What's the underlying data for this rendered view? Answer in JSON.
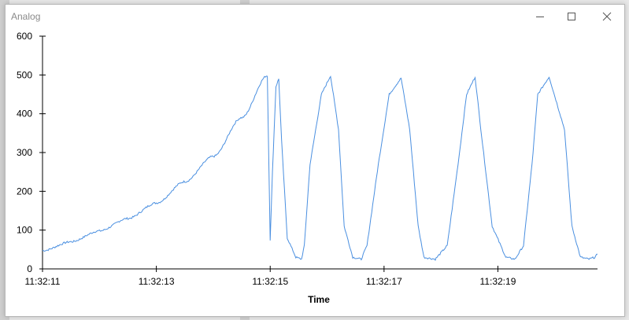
{
  "window": {
    "title": "Analog"
  },
  "icons": {
    "minimize": "minimize-icon",
    "maximize": "maximize-icon",
    "close": "close-icon"
  },
  "colors": {
    "series": "#4a8fe0",
    "axis": "#000000"
  },
  "chart_data": {
    "type": "line",
    "title": "",
    "xlabel": "Time",
    "ylabel": "",
    "xlim": [
      "11:32:11",
      "11:32:19.75"
    ],
    "ylim": [
      0,
      600
    ],
    "grid": false,
    "legend": "none",
    "y_ticks": [
      0,
      100,
      200,
      300,
      400,
      500,
      600
    ],
    "x_ticks": [
      "11:32:11",
      "11:32:13",
      "11:32:15",
      "11:32:17",
      "11:32:19"
    ],
    "x_unit": "seconds after 11:32:11",
    "series": [
      {
        "x": [
          0.0,
          0.5,
          1.0,
          1.5,
          2.0,
          2.5,
          3.0,
          3.5,
          3.95,
          4.0,
          4.04,
          4.1,
          4.15,
          4.2,
          4.3,
          4.45,
          4.55,
          4.6,
          4.7,
          4.9,
          5.06,
          5.2,
          5.3,
          5.45,
          5.6,
          5.7,
          5.9,
          6.09,
          6.3,
          6.45,
          6.6,
          6.7,
          6.9,
          7.11,
          7.3,
          7.45,
          7.6,
          7.7,
          7.9,
          8.14,
          8.3,
          8.45,
          8.6,
          8.7,
          8.9,
          9.17,
          9.3,
          9.45,
          9.6,
          9.7,
          9.75
        ],
        "values": [
          47,
          70,
          98,
          130,
          170,
          225,
          290,
          390,
          498,
          75,
          250,
          470,
          490,
          330,
          80,
          30,
          25,
          60,
          270,
          450,
          498,
          360,
          110,
          30,
          25,
          60,
          270,
          450,
          492,
          360,
          110,
          30,
          25,
          60,
          270,
          450,
          495,
          360,
          110,
          30,
          25,
          60,
          270,
          450,
          495,
          360,
          110,
          30,
          25,
          30,
          38
        ]
      }
    ]
  }
}
